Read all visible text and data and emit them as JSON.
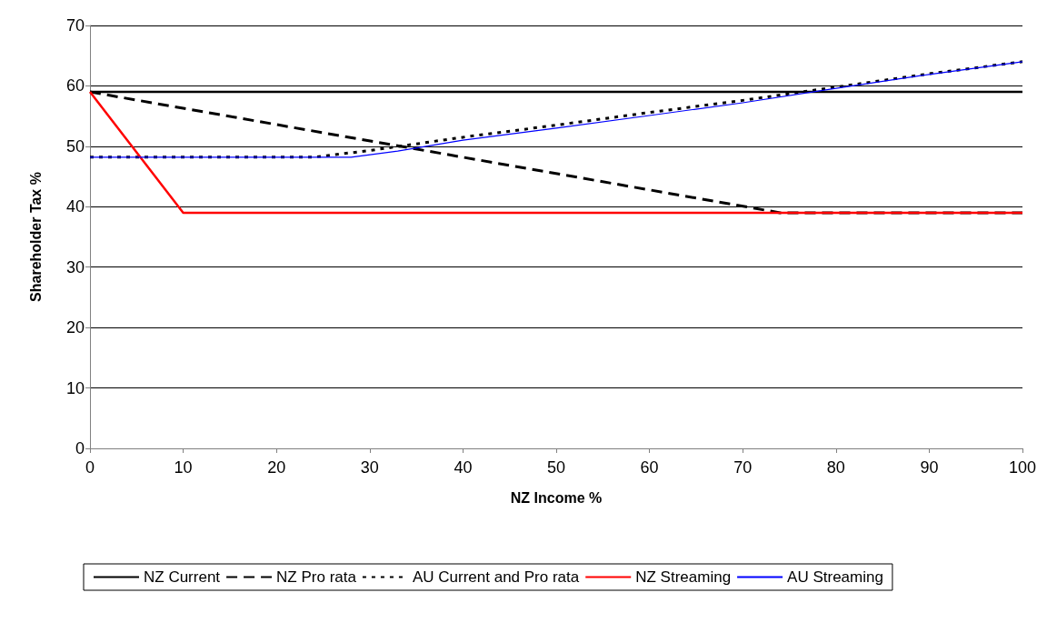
{
  "chart_data": {
    "type": "line",
    "xlabel": "NZ Income %",
    "ylabel": "Shareholder Tax %",
    "xlim": [
      0,
      100
    ],
    "xticks": [
      0,
      10,
      20,
      30,
      40,
      50,
      60,
      70,
      80,
      90,
      100
    ],
    "ylim": [
      0,
      70
    ],
    "yticks": [
      0,
      10,
      20,
      30,
      40,
      50,
      60,
      70
    ],
    "grid": "y",
    "legend": "bottom",
    "marker": "none",
    "series": [
      {
        "name": "NZ Current",
        "color": "#000000",
        "line_style": "solid",
        "x": [
          0,
          100
        ],
        "values": [
          59,
          59
        ]
      },
      {
        "name": "NZ Pro rata",
        "color": "#000000",
        "line_style": "dashed",
        "x": [
          0,
          74,
          100
        ],
        "values": [
          59,
          39,
          39
        ]
      },
      {
        "name": "AU Current and Pro rata",
        "color": "#000000",
        "line_style": "dotted",
        "x": [
          0,
          24,
          30,
          40,
          50,
          60,
          70,
          80,
          90,
          100
        ],
        "values": [
          48.2,
          48.2,
          49.3,
          51.5,
          53.5,
          55.6,
          57.6,
          59.8,
          62,
          64
        ]
      },
      {
        "name": "NZ Streaming",
        "color": "#ff0000",
        "line_style": "solid",
        "x": [
          0,
          10,
          100
        ],
        "values": [
          59,
          39,
          39
        ]
      },
      {
        "name": "AU Streaming",
        "color": "#0000ff",
        "line_style": "solid",
        "x": [
          0,
          28,
          33,
          40,
          50,
          60,
          70,
          80,
          90,
          100
        ],
        "values": [
          48.2,
          48.2,
          49.2,
          51,
          53,
          55.1,
          57.2,
          59.6,
          61.9,
          64
        ]
      }
    ]
  }
}
